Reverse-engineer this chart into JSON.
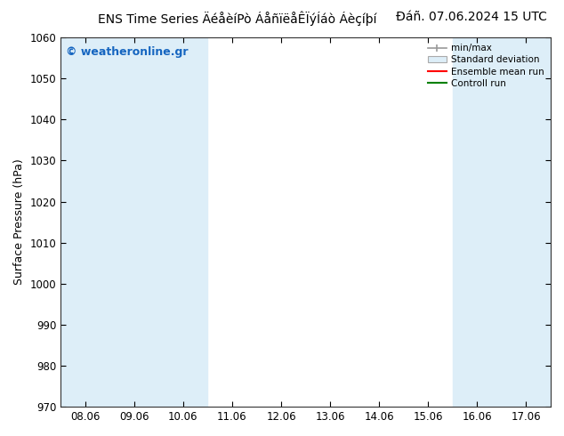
{
  "title_left": "ENS Time Series ÄéåèíPò ÁåñïëåÊÏýÍáò Áèçíþí",
  "title_right": "Đáñ. 07.06.2024 15 UTC",
  "ylabel": "Surface Pressure (hPa)",
  "ylim": [
    970,
    1060
  ],
  "yticks": [
    970,
    980,
    990,
    1000,
    1010,
    1020,
    1030,
    1040,
    1050,
    1060
  ],
  "xlabels": [
    "08.06",
    "09.06",
    "10.06",
    "11.06",
    "12.06",
    "13.06",
    "14.06",
    "15.06",
    "16.06",
    "17.06"
  ],
  "shade_color": "#ddeef8",
  "shade_xranges": [
    [
      -0.5,
      2.5
    ],
    [
      7.5,
      9.5
    ]
  ],
  "watermark": "© weatheronline.gr",
  "watermark_color": "#1565c0",
  "legend_labels": [
    "min/max",
    "Standard deviation",
    "Ensemble mean run",
    "Controll run"
  ],
  "legend_line_colors": [
    "#999999",
    "#bbbbbb",
    "#ff0000",
    "#008000"
  ],
  "bg_color": "#ffffff",
  "title_fontsize": 10,
  "ylabel_fontsize": 9,
  "tick_fontsize": 8.5
}
